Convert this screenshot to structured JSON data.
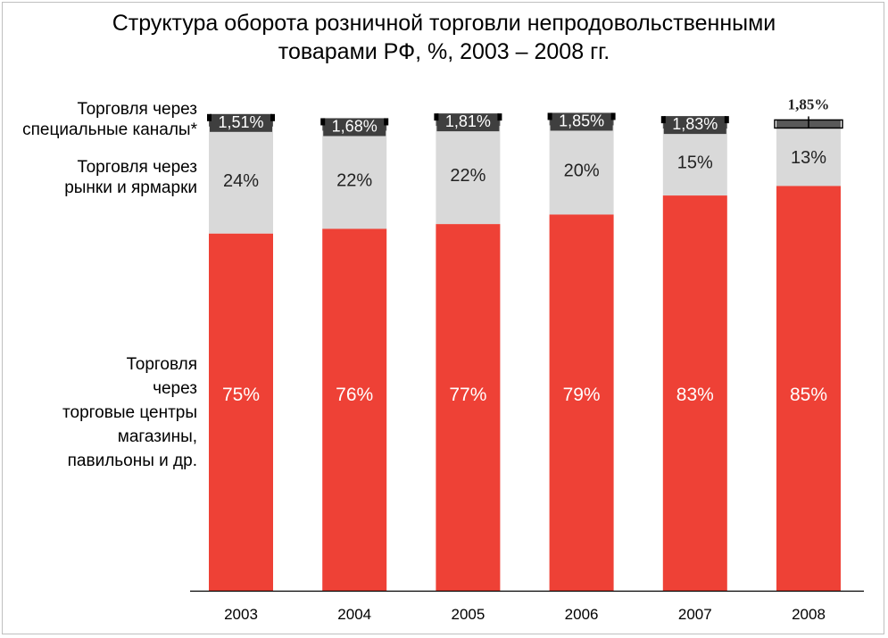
{
  "chart_data": {
    "type": "bar",
    "stacked": true,
    "title": [
      "Структура оборота розничной торговли непродовольственными",
      "товарами РФ, %, 2003 – 2008 гг."
    ],
    "categories": [
      "2003",
      "2004",
      "2005",
      "2006",
      "2007",
      "2008"
    ],
    "series": [
      {
        "name": "Торговля через торговые центры магазины, павильоны и др.",
        "label_lines": [
          "Торговля",
          "через",
          "торговые центры",
          "магазины,",
          "павильоны и др."
        ],
        "values": [
          75,
          76,
          77,
          79,
          83,
          85
        ],
        "labels": [
          "75%",
          "76%",
          "77%",
          "79%",
          "83%",
          "85%"
        ],
        "color": "#ee4136"
      },
      {
        "name": "Торговля через рынки и ярмарки",
        "label_lines": [
          "Торговля через",
          "рынки и ярмарки"
        ],
        "values": [
          24,
          22,
          22,
          20,
          15,
          13
        ],
        "labels": [
          "24%",
          "22%",
          "22%",
          "20%",
          "15%",
          "13%"
        ],
        "color": "#d9d9d9"
      },
      {
        "name": "Торговля через специальные каналы*",
        "label_lines": [
          "Торговля через",
          "специальные каналы*"
        ],
        "values": [
          1.51,
          1.68,
          1.81,
          1.85,
          1.83,
          1.85
        ],
        "labels": [
          "1,51%",
          "1,68%",
          "1,81%",
          "1,85%",
          "1,83%",
          "1,85%"
        ],
        "color": "#595959"
      }
    ],
    "ylim": [
      0,
      100
    ],
    "grid": false,
    "legend": "none"
  }
}
